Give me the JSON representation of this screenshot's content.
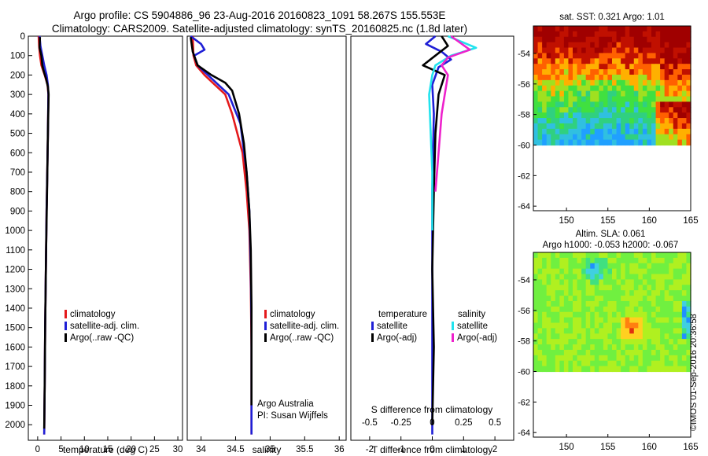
{
  "header": {
    "title1": "Argo profile: CS 5904886_96 23-Aug-2016 20160823_1091 58.267S 155.553E",
    "title2": "Climatology: CARS2009. Satellite-adjusted climatology: synTS_20160825.nc (1.8d later)"
  },
  "stamp": "©IMOS 01-Sep-2016 20:36:58",
  "colors": {
    "climatology": "#e41a1c",
    "satellite_adj": "#1f1fd6",
    "argo": "#000000",
    "salinity_satellite": "#22e3ee",
    "salinity_argo": "#ee22cc"
  },
  "chart_data": [
    {
      "id": "temperature",
      "type": "line",
      "xlabel": "temperature (deg C)",
      "ylabel": "",
      "xlim": [
        -2,
        31
      ],
      "ylim": [
        2080,
        0
      ],
      "y_reversed": true,
      "xticks": [
        0,
        5,
        10,
        15,
        20,
        25,
        30
      ],
      "yticks": [
        0,
        100,
        200,
        300,
        400,
        500,
        600,
        700,
        800,
        900,
        1000,
        1100,
        1200,
        1300,
        1400,
        1500,
        1600,
        1700,
        1800,
        1900,
        2000
      ],
      "legend": [
        "climatology",
        "satellite-adj. clim.",
        "Argo(..raw -QC)"
      ],
      "series": [
        {
          "name": "climatology",
          "color_key": "climatology",
          "x": [
            0.2,
            0.3,
            0.5,
            0.8,
            1.5,
            2.1,
            2.3,
            2.2,
            2.05,
            1.9,
            1.75,
            1.6,
            1.5,
            1.4
          ],
          "y": [
            0,
            50,
            100,
            150,
            200,
            250,
            300,
            500,
            700,
            900,
            1200,
            1500,
            1800,
            2050
          ]
        },
        {
          "name": "satellite-adj. clim.",
          "color_key": "satellite_adj",
          "x": [
            0.4,
            0.6,
            1.0,
            1.4,
            1.9,
            2.2,
            2.3,
            2.2,
            2.05,
            1.9,
            1.75,
            1.6,
            1.5,
            1.4
          ],
          "y": [
            0,
            50,
            100,
            150,
            200,
            250,
            300,
            500,
            700,
            900,
            1200,
            1500,
            1800,
            2050
          ]
        },
        {
          "name": "Argo(..raw -QC)",
          "color_key": "argo",
          "x": [
            0.5,
            0.4,
            0.8,
            1.0,
            1.3,
            1.8,
            2.2,
            2.35,
            2.2,
            2.0,
            1.8,
            1.6,
            1.5,
            1.4
          ],
          "y": [
            5,
            60,
            100,
            150,
            180,
            220,
            260,
            300,
            500,
            800,
            1100,
            1500,
            1800,
            2020
          ]
        }
      ]
    },
    {
      "id": "salinity",
      "type": "line",
      "xlabel": "salinity",
      "ylabel": "",
      "xlim": [
        33.8,
        36.1
      ],
      "ylim": [
        2080,
        0
      ],
      "y_reversed": true,
      "xticks": [
        34,
        34.5,
        35,
        35.5,
        36
      ],
      "legend": [
        "climatology",
        "satellite-adj. clim.",
        "Argo(..raw -QC)"
      ],
      "annotation": [
        "Argo Australia",
        "PI: Susan Wijffels"
      ],
      "series": [
        {
          "name": "climatology",
          "color_key": "climatology",
          "x": [
            33.88,
            33.89,
            33.93,
            34.05,
            34.2,
            34.35,
            34.45,
            34.6,
            34.66,
            34.7,
            34.72,
            34.73,
            34.73
          ],
          "y": [
            0,
            100,
            150,
            200,
            250,
            300,
            400,
            600,
            800,
            1000,
            1300,
            1600,
            2050
          ]
        },
        {
          "name": "satellite-adj. clim.",
          "color_key": "satellite_adj",
          "x": [
            33.85,
            34.0,
            34.05,
            33.9,
            33.95,
            34.1,
            34.25,
            34.4,
            34.57,
            34.66,
            34.7,
            34.72,
            34.73,
            34.73
          ],
          "y": [
            0,
            40,
            70,
            100,
            150,
            200,
            250,
            300,
            450,
            700,
            900,
            1200,
            1500,
            2050
          ]
        },
        {
          "name": "Argo(..raw -QC)",
          "color_key": "argo",
          "x": [
            33.85,
            33.88,
            33.95,
            34.15,
            34.35,
            34.45,
            34.55,
            34.62,
            34.66,
            34.7,
            34.72,
            34.73,
            34.73
          ],
          "y": [
            5,
            80,
            150,
            200,
            240,
            280,
            400,
            550,
            700,
            900,
            1100,
            1400,
            1900
          ]
        }
      ]
    },
    {
      "id": "difference",
      "type": "line",
      "xlabel": "T difference from climatology",
      "secondary_xlabel": "S difference from climatology",
      "xlim": [
        -2.6,
        2.6
      ],
      "ylim": [
        2080,
        0
      ],
      "y_reversed": true,
      "xticks": [
        -2,
        -1,
        0,
        1,
        2
      ],
      "xticklabels": [
        "-2",
        "-1",
        "0",
        "1",
        "2"
      ],
      "secondary_xticks": [
        -2,
        -1,
        0,
        1,
        2
      ],
      "secondary_xticklabels": [
        "-0.5",
        "-0.25",
        "0",
        "0.25",
        "0.5"
      ],
      "legend_headers": [
        "temperature",
        "salinity"
      ],
      "legend": [
        "satellite",
        "Argo(-adj)",
        "satellite",
        "Argo(-adj)"
      ],
      "series": [
        {
          "name": "temperature satellite",
          "color_key": "satellite_adj",
          "x": [
            0.1,
            -0.2,
            0.3,
            0.6,
            0.2,
            0.0,
            0.05,
            0.0,
            0.0,
            0.0,
            0.0
          ],
          "y": [
            0,
            40,
            80,
            120,
            160,
            250,
            400,
            800,
            1200,
            1600,
            2050
          ]
        },
        {
          "name": "temperature Argo(-adj)",
          "color_key": "argo",
          "x": [
            0.3,
            0.5,
            0.1,
            -0.3,
            0.4,
            0.2,
            0.1,
            0.05,
            0.0,
            0.05,
            0.0
          ],
          "y": [
            0,
            50,
            100,
            150,
            200,
            300,
            500,
            800,
            1200,
            1600,
            2000
          ]
        },
        {
          "name": "salinity satellite",
          "color_key": "salinity_satellite",
          "x": [
            0.5,
            1.4,
            0.6,
            0.1,
            0.0,
            -0.1,
            -0.05,
            0.0,
            0.0
          ],
          "y": [
            0,
            60,
            100,
            150,
            200,
            300,
            500,
            700,
            1000
          ]
        },
        {
          "name": "salinity Argo(-adj)",
          "color_key": "salinity_argo",
          "x": [
            0.6,
            1.2,
            0.5,
            0.3,
            0.5,
            0.4,
            0.3,
            0.2,
            0.1
          ],
          "y": [
            0,
            70,
            110,
            150,
            200,
            300,
            400,
            600,
            800
          ]
        }
      ]
    },
    {
      "id": "sst_map",
      "type": "heatmap",
      "title": "sat. SST: 0.321 Argo: 1.01",
      "xlim": [
        146,
        165
      ],
      "ylim": [
        -64.3,
        -52.2
      ],
      "xticks": [
        150,
        155,
        160,
        165
      ],
      "yticks": [
        -54,
        -56,
        -58,
        -60,
        -62,
        -64
      ],
      "data_ylim": [
        -60,
        -52.2
      ]
    },
    {
      "id": "sla_map",
      "type": "heatmap",
      "title": "Altim. SLA: 0.061",
      "subtitle": "Argo h1000: -0.053 h2000: -0.067",
      "xlim": [
        146,
        165
      ],
      "ylim": [
        -64.3,
        -52.2
      ],
      "xticks": [
        150,
        155,
        160,
        165
      ],
      "yticks": [
        -54,
        -56,
        -58,
        -60,
        -62,
        -64
      ],
      "data_ylim": [
        -60,
        -52.2
      ]
    }
  ]
}
